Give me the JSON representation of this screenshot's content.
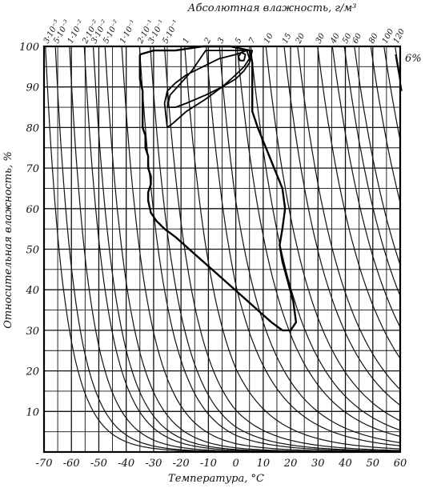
{
  "chart_data": {
    "type": "line",
    "title": "",
    "xlabel": "Температура, °С",
    "ylabel": "Относительная влажность, %",
    "x2label": "Абсолютная влажность, г/м³",
    "xlim": [
      -70,
      60
    ],
    "ylim": [
      0,
      100
    ],
    "grid": true,
    "x_ticks": [
      -70,
      -60,
      -50,
      -40,
      -30,
      -20,
      -10,
      0,
      10,
      20,
      30,
      40,
      50,
      60
    ],
    "x_tick_labels": [
      "-70",
      "-60",
      "-50",
      "-40",
      "-30",
      "-20",
      "-10",
      "0",
      "10",
      "20",
      "30",
      "40",
      "50",
      "60"
    ],
    "y_ticks": [
      10,
      20,
      30,
      40,
      50,
      60,
      70,
      80,
      90,
      100
    ],
    "y_tick_labels": [
      "10",
      "20",
      "30",
      "40",
      "50",
      "60",
      "70",
      "80",
      "90",
      "100"
    ],
    "absolute_humidity_ticks": [
      "3·10⁻³",
      "5·10⁻³",
      "1·10⁻²",
      "2·10⁻²",
      "3·10⁻²",
      "5·10⁻²",
      "1·10⁻¹",
      "2·10⁻¹",
      "3·10⁻¹",
      "5·10⁻¹",
      "1",
      "2",
      "3",
      "5",
      "7",
      "10",
      "15",
      "20",
      "30",
      "40",
      "50",
      "60",
      "80",
      "100",
      "120"
    ],
    "absolute_humidity_values": [
      0.003,
      0.005,
      0.01,
      0.02,
      0.03,
      0.05,
      0.1,
      0.2,
      0.3,
      0.5,
      1,
      2,
      3,
      5,
      7,
      10,
      15,
      20,
      30,
      40,
      50,
      60,
      80,
      100,
      120
    ],
    "annotation": "6%",
    "regions": [
      {
        "points": [
          [
            -35,
            98
          ],
          [
            -35,
            95
          ],
          [
            -35,
            92
          ],
          [
            -34,
            89
          ],
          [
            -34,
            86
          ],
          [
            -34,
            83
          ],
          [
            -34,
            80
          ],
          [
            -33,
            78
          ],
          [
            -33,
            75
          ],
          [
            -32,
            73
          ],
          [
            -32,
            70
          ],
          [
            -31,
            68
          ],
          [
            -31,
            66
          ],
          [
            -32,
            64
          ],
          [
            -32,
            62
          ],
          [
            -31,
            59
          ],
          [
            -29,
            57
          ],
          [
            -26,
            55
          ],
          [
            -22,
            53
          ],
          [
            -17,
            50
          ],
          [
            -12,
            47
          ],
          [
            -7,
            44
          ],
          [
            -2,
            41
          ],
          [
            3,
            38
          ],
          [
            8,
            35
          ],
          [
            13,
            32
          ],
          [
            17,
            30
          ],
          [
            20,
            30
          ],
          [
            22,
            32
          ],
          [
            21,
            37
          ],
          [
            19,
            42
          ],
          [
            17,
            47
          ],
          [
            16,
            51
          ],
          [
            17,
            55
          ],
          [
            18,
            60
          ],
          [
            17,
            65
          ],
          [
            14,
            70
          ],
          [
            11,
            75
          ],
          [
            8,
            80
          ],
          [
            6,
            84
          ],
          [
            6,
            88
          ],
          [
            6,
            92
          ],
          [
            6,
            96
          ],
          [
            5,
            99
          ],
          [
            -2,
            100
          ],
          [
            -12,
            100
          ],
          [
            -22,
            99
          ],
          [
            -30,
            99
          ],
          [
            -35,
            98
          ]
        ]
      },
      {
        "points": [
          [
            -25,
            80
          ],
          [
            -26,
            86
          ],
          [
            -25,
            89
          ],
          [
            -22,
            91
          ],
          [
            -18,
            93
          ],
          [
            -12,
            95
          ],
          [
            -6,
            97
          ],
          [
            0,
            98
          ],
          [
            4,
            99
          ],
          [
            5,
            97
          ],
          [
            3,
            95
          ],
          [
            0,
            93
          ],
          [
            -5,
            90
          ],
          [
            -11,
            87
          ],
          [
            -18,
            84
          ],
          [
            -23,
            81
          ],
          [
            -25,
            80
          ]
        ]
      },
      {
        "points": [
          [
            -25,
            85
          ],
          [
            -24,
            88
          ],
          [
            -20,
            91
          ],
          [
            -16,
            94
          ],
          [
            -13,
            97
          ],
          [
            -11,
            99
          ],
          [
            -5,
            99
          ],
          [
            0,
            99
          ],
          [
            4,
            99
          ],
          [
            6,
            99
          ],
          [
            5,
            96
          ],
          [
            3,
            94
          ],
          [
            0,
            92
          ],
          [
            -5,
            90
          ],
          [
            -11,
            88
          ],
          [
            -18,
            86
          ],
          [
            -22,
            85
          ],
          [
            -25,
            85
          ]
        ]
      },
      {
        "points": [
          [
            1,
            97.5
          ],
          [
            2,
            98.5
          ],
          [
            3.5,
            98
          ],
          [
            3,
            96.5
          ],
          [
            1.5,
            96.5
          ],
          [
            1,
            97.5
          ]
        ]
      }
    ]
  }
}
